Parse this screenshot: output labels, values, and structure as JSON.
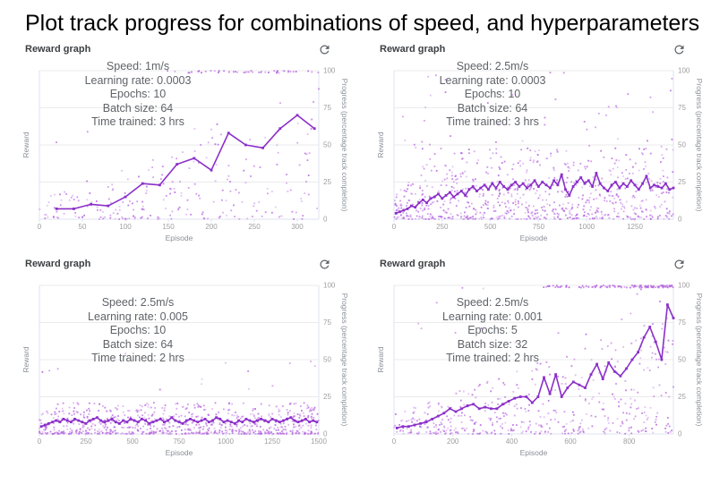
{
  "page_title": "Plot track progress for combinations of speed, and hyperparameters",
  "icons": {
    "refresh": "refresh-icon (circular arrow)"
  },
  "colors": {
    "line": "#8b2fc9",
    "scatter": "#b768e0",
    "grid": "#ebebeb",
    "spine": "#dfe3f0",
    "tick_label": "#9e9e9e",
    "axis_title": "#8a8f98",
    "annotation_text": "#5f6368",
    "panel_title": "#3c4043",
    "icon": "#5f6368",
    "page_title": "#000000"
  },
  "chart_data": [
    {
      "type": "scatter",
      "title": "Reward graph",
      "refresh_label": "Refresh",
      "annotation": [
        "Speed: 1m/s",
        "Learning rate: 0.0003",
        "Epochs: 10",
        "Batch size: 64",
        "Time trained: 3 hrs"
      ],
      "xlabel": "Episode",
      "ylabel_left": "Reward",
      "ylabel_right": "Progress (percentage track completion)",
      "x_ticks": [
        0,
        50,
        100,
        150,
        200,
        250,
        300
      ],
      "x_max": 325,
      "y_ticks": [
        0,
        25,
        50,
        75,
        100
      ],
      "ylim": [
        0,
        100
      ],
      "line": {
        "x_start": 20,
        "x_step": 20,
        "y": [
          7,
          7,
          10,
          9,
          15,
          24,
          23,
          37,
          41,
          33,
          58,
          50,
          48,
          61,
          70,
          61
        ]
      },
      "scatter": {
        "seed": 101,
        "count": 235,
        "mode": "rise",
        "base": 14,
        "trend": 70,
        "outlier_rate": 0.05,
        "outlier_min": 40,
        "outlier_max": 100
      },
      "top_row": {
        "from": 140,
        "to": 325,
        "count": 46,
        "bias": 1
      }
    },
    {
      "type": "scatter",
      "title": "Reward graph",
      "refresh_label": "Refresh",
      "annotation": [
        "Speed: 2.5m/s",
        "Learning rate: 0.0003",
        "Epochs: 10",
        "Batch size: 64",
        "Time trained: 3 hrs"
      ],
      "xlabel": "Episode",
      "ylabel_left": "Reward",
      "ylabel_right": "Progress (percentage track completion)",
      "x_ticks": [
        0,
        250,
        500,
        750,
        1000,
        1250
      ],
      "x_max": 1450,
      "y_ticks": [
        0,
        25,
        50,
        75,
        100
      ],
      "ylim": [
        0,
        100
      ],
      "line": {
        "x_start": 10,
        "x_step": 20,
        "y": [
          4,
          5,
          6,
          7,
          9,
          8,
          11,
          13,
          11,
          14,
          15,
          17,
          14,
          16,
          18,
          15,
          17,
          19,
          16,
          20,
          22,
          19,
          21,
          23,
          20,
          24,
          21,
          25,
          22,
          20,
          23,
          25,
          22,
          24,
          21,
          23,
          26,
          22,
          25,
          23,
          21,
          26,
          23,
          30,
          20,
          16,
          22,
          25,
          28,
          24,
          26,
          22,
          31,
          24,
          21,
          19,
          23,
          25,
          21,
          24,
          22,
          26,
          23,
          20,
          24,
          29,
          21,
          23,
          22,
          21,
          24,
          20,
          21
        ]
      },
      "scatter": {
        "seed": 202,
        "count": 800,
        "mode": "plateau",
        "base": 15,
        "trend": 33,
        "ramp": 0.15,
        "outlier_rate": 0.06,
        "outlier_min": 45,
        "outlier_max": 100
      },
      "top_row": null
    },
    {
      "type": "scatter",
      "title": "Reward graph",
      "refresh_label": "Refresh",
      "annotation": [
        "Speed: 2.5m/s",
        "Learning rate: 0.005",
        "Epochs: 10",
        "Batch size: 64",
        "Time trained: 2 hrs"
      ],
      "xlabel": "Episode",
      "ylabel_left": "Reward",
      "ylabel_right": "Progress (percentage track completion)",
      "x_ticks": [
        0,
        250,
        500,
        750,
        1000,
        1250,
        1500
      ],
      "x_max": 1500,
      "y_ticks": [
        0,
        25,
        50,
        75,
        100
      ],
      "ylim": [
        0,
        100
      ],
      "line": {
        "x_start": 10,
        "x_step": 20,
        "y": [
          5,
          6,
          7,
          8,
          9,
          8,
          10,
          9,
          8,
          10,
          9,
          8,
          7,
          9,
          10,
          11,
          9,
          8,
          9,
          10,
          8,
          7,
          9,
          8,
          10,
          9,
          8,
          10,
          9,
          7,
          8,
          9,
          10,
          8,
          9,
          11,
          9,
          8,
          7,
          9,
          10,
          9,
          8,
          9,
          10,
          8,
          9,
          11,
          10,
          8,
          9,
          8,
          7,
          9,
          8,
          10,
          9,
          8,
          9,
          10,
          9,
          8,
          10,
          9,
          8,
          9,
          10,
          11,
          9,
          8,
          9,
          10,
          8,
          9,
          8
        ]
      },
      "scatter": {
        "seed": 303,
        "count": 780,
        "mode": "flat",
        "base": 21,
        "outlier_rate": 0.025,
        "outlier_min": 25,
        "outlier_max": 55
      },
      "top_row": null
    },
    {
      "type": "scatter",
      "title": "Reward graph",
      "refresh_label": "Refresh",
      "annotation": [
        "Speed: 2.5m/s",
        "Learning rate: 0.001",
        "Epochs: 5",
        "Batch size: 32",
        "Time trained: 2 hrs"
      ],
      "xlabel": "Episode",
      "ylabel_left": "Reward",
      "ylabel_right": "Progress (percentage track completion)",
      "x_ticks": [
        0,
        200,
        400,
        600,
        800
      ],
      "x_max": 950,
      "y_ticks": [
        0,
        25,
        50,
        75,
        100
      ],
      "ylim": [
        0,
        100
      ],
      "line": {
        "x_start": 10,
        "x_step": 20,
        "y": [
          4,
          5,
          5,
          6,
          7,
          8,
          10,
          12,
          14,
          17,
          15,
          17,
          19,
          20,
          17,
          18,
          17,
          17,
          20,
          22,
          24,
          25,
          25,
          21,
          25,
          38,
          27,
          40,
          25,
          31,
          35,
          33,
          31,
          40,
          47,
          37,
          48,
          42,
          39,
          44,
          50,
          55,
          65,
          72,
          62,
          50,
          87,
          78
        ]
      },
      "scatter": {
        "seed": 404,
        "count": 470,
        "mode": "rise",
        "base": 13,
        "trend": 68,
        "outlier_rate": 0.05,
        "outlier_min": 60,
        "outlier_max": 100
      },
      "top_row": {
        "from": 430,
        "to": 950,
        "count": 110,
        "bias": 0.6
      }
    }
  ]
}
